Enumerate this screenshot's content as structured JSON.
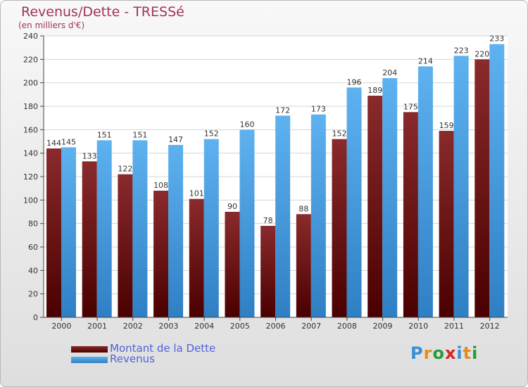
{
  "title": "Revenus/Dette - TRESSé",
  "subtitle": "(en milliers d'€)",
  "colors": {
    "debt": "#7a1a1c",
    "debt_dark": "#4a0000",
    "revenue": "#56aaea",
    "revenue_dark": "#2f7fc4",
    "title": "#a3325b",
    "legend_text": "#4f63d8"
  },
  "legend": {
    "debt_label": "Montant de la Dette",
    "revenue_label": "Revenus"
  },
  "logo": {
    "text": "Proxiti",
    "letters": [
      "P",
      "r",
      "o",
      "x",
      "i",
      "t",
      "i"
    ]
  },
  "chart_data": {
    "type": "bar",
    "title": "Revenus/Dette - TRESSé",
    "subtitle": "(en milliers d'€)",
    "categories": [
      "2000",
      "2001",
      "2002",
      "2003",
      "2004",
      "2005",
      "2006",
      "2007",
      "2008",
      "2009",
      "2010",
      "2011",
      "2012"
    ],
    "series": [
      {
        "name": "Montant de la Dette",
        "values": [
          144,
          133,
          122,
          108,
          101,
          90,
          78,
          88,
          152,
          189,
          175,
          159,
          220
        ]
      },
      {
        "name": "Revenus",
        "values": [
          145,
          151,
          151,
          147,
          152,
          160,
          172,
          173,
          196,
          204,
          214,
          223,
          233
        ]
      }
    ],
    "ylim": [
      0,
      240
    ],
    "yticks": [
      0,
      20,
      40,
      60,
      80,
      100,
      120,
      140,
      160,
      180,
      200,
      220,
      240
    ],
    "grid": true,
    "legend_position": "bottom-left"
  }
}
